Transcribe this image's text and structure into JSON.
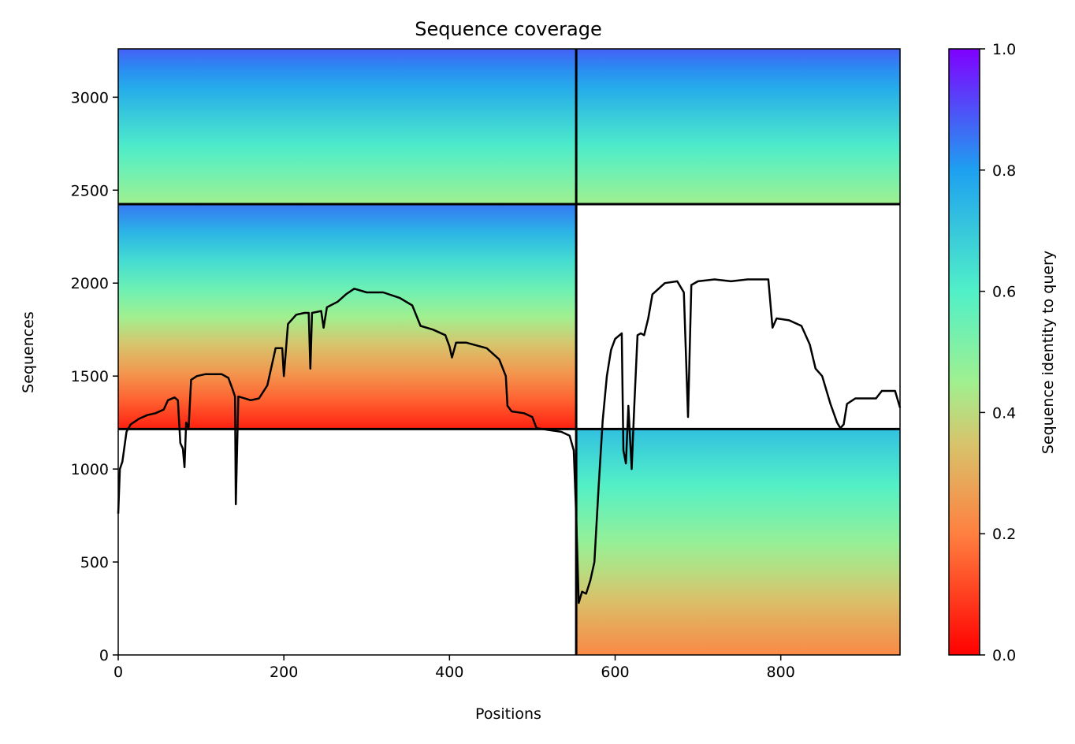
{
  "chart_data": {
    "type": "heatmap",
    "title": "Sequence coverage",
    "xlabel": "Positions",
    "ylabel": "Sequences",
    "xlim": [
      0,
      944
    ],
    "ylim": [
      0,
      3260
    ],
    "x_ticks": [
      0,
      200,
      400,
      600,
      800
    ],
    "y_ticks": [
      0,
      500,
      1000,
      1500,
      2000,
      2500,
      3000
    ],
    "colorbar": {
      "label": "Sequence identity to query",
      "range": [
        0,
        1
      ],
      "ticks": [
        "0.0",
        "0.2",
        "0.4",
        "0.6",
        "0.8",
        "1.0"
      ],
      "colormap": "rainbow"
    },
    "blocks": [
      {
        "name": "block-top-left",
        "x": [
          0,
          553
        ],
        "y": [
          2425,
          3260
        ],
        "identity_top": 0.88,
        "identity_bottom": 0.45
      },
      {
        "name": "block-top-right",
        "x": [
          553,
          944
        ],
        "y": [
          2425,
          3260
        ],
        "identity_top": 0.88,
        "identity_bottom": 0.45
      },
      {
        "name": "block-middle-left",
        "x": [
          0,
          553
        ],
        "y": [
          1215,
          2425
        ],
        "identity_top": 0.85,
        "identity_bottom": 0.05
      },
      {
        "name": "block-bottom-right",
        "x": [
          553,
          944
        ],
        "y": [
          0,
          1215
        ],
        "identity_top": 0.72,
        "identity_bottom": 0.22
      }
    ],
    "divider_x": 553,
    "divider_y": [
      1215,
      2425
    ],
    "coverage_line": {
      "name": "coverage",
      "color": "#000000",
      "points": [
        [
          0,
          760
        ],
        [
          2,
          1000
        ],
        [
          5,
          1040
        ],
        [
          10,
          1200
        ],
        [
          15,
          1240
        ],
        [
          25,
          1270
        ],
        [
          35,
          1290
        ],
        [
          45,
          1300
        ],
        [
          55,
          1320
        ],
        [
          60,
          1370
        ],
        [
          68,
          1385
        ],
        [
          72,
          1370
        ],
        [
          75,
          1140
        ],
        [
          78,
          1110
        ],
        [
          80,
          1010
        ],
        [
          82,
          1250
        ],
        [
          85,
          1220
        ],
        [
          88,
          1480
        ],
        [
          95,
          1500
        ],
        [
          105,
          1510
        ],
        [
          125,
          1510
        ],
        [
          133,
          1490
        ],
        [
          138,
          1430
        ],
        [
          141,
          1390
        ],
        [
          142,
          810
        ],
        [
          145,
          1390
        ],
        [
          160,
          1370
        ],
        [
          170,
          1380
        ],
        [
          180,
          1450
        ],
        [
          190,
          1650
        ],
        [
          198,
          1650
        ],
        [
          200,
          1500
        ],
        [
          205,
          1780
        ],
        [
          215,
          1830
        ],
        [
          225,
          1840
        ],
        [
          230,
          1840
        ],
        [
          232,
          1540
        ],
        [
          234,
          1840
        ],
        [
          245,
          1850
        ],
        [
          248,
          1760
        ],
        [
          252,
          1870
        ],
        [
          265,
          1900
        ],
        [
          275,
          1940
        ],
        [
          285,
          1970
        ],
        [
          300,
          1950
        ],
        [
          320,
          1950
        ],
        [
          340,
          1920
        ],
        [
          355,
          1880
        ],
        [
          365,
          1770
        ],
        [
          380,
          1750
        ],
        [
          395,
          1720
        ],
        [
          400,
          1660
        ],
        [
          403,
          1600
        ],
        [
          408,
          1680
        ],
        [
          420,
          1680
        ],
        [
          445,
          1650
        ],
        [
          460,
          1590
        ],
        [
          468,
          1500
        ],
        [
          470,
          1340
        ],
        [
          475,
          1310
        ],
        [
          490,
          1300
        ],
        [
          500,
          1280
        ],
        [
          505,
          1220
        ],
        [
          520,
          1210
        ],
        [
          535,
          1200
        ],
        [
          545,
          1180
        ],
        [
          550,
          1100
        ],
        [
          553,
          750
        ],
        [
          556,
          280
        ],
        [
          560,
          340
        ],
        [
          565,
          330
        ],
        [
          570,
          400
        ],
        [
          575,
          500
        ],
        [
          580,
          900
        ],
        [
          585,
          1260
        ],
        [
          590,
          1500
        ],
        [
          595,
          1640
        ],
        [
          600,
          1700
        ],
        [
          608,
          1730
        ],
        [
          610,
          1100
        ],
        [
          613,
          1030
        ],
        [
          616,
          1340
        ],
        [
          620,
          1000
        ],
        [
          623,
          1330
        ],
        [
          627,
          1720
        ],
        [
          631,
          1730
        ],
        [
          635,
          1720
        ],
        [
          640,
          1810
        ],
        [
          645,
          1940
        ],
        [
          650,
          1960
        ],
        [
          660,
          2000
        ],
        [
          675,
          2010
        ],
        [
          683,
          1950
        ],
        [
          688,
          1280
        ],
        [
          692,
          1990
        ],
        [
          700,
          2010
        ],
        [
          720,
          2020
        ],
        [
          740,
          2010
        ],
        [
          760,
          2020
        ],
        [
          785,
          2020
        ],
        [
          790,
          1760
        ],
        [
          795,
          1810
        ],
        [
          810,
          1800
        ],
        [
          825,
          1770
        ],
        [
          835,
          1670
        ],
        [
          842,
          1540
        ],
        [
          850,
          1500
        ],
        [
          860,
          1350
        ],
        [
          868,
          1250
        ],
        [
          872,
          1220
        ],
        [
          876,
          1240
        ],
        [
          880,
          1350
        ],
        [
          890,
          1380
        ],
        [
          905,
          1380
        ],
        [
          915,
          1380
        ],
        [
          922,
          1420
        ],
        [
          938,
          1420
        ],
        [
          944,
          1330
        ]
      ]
    }
  }
}
